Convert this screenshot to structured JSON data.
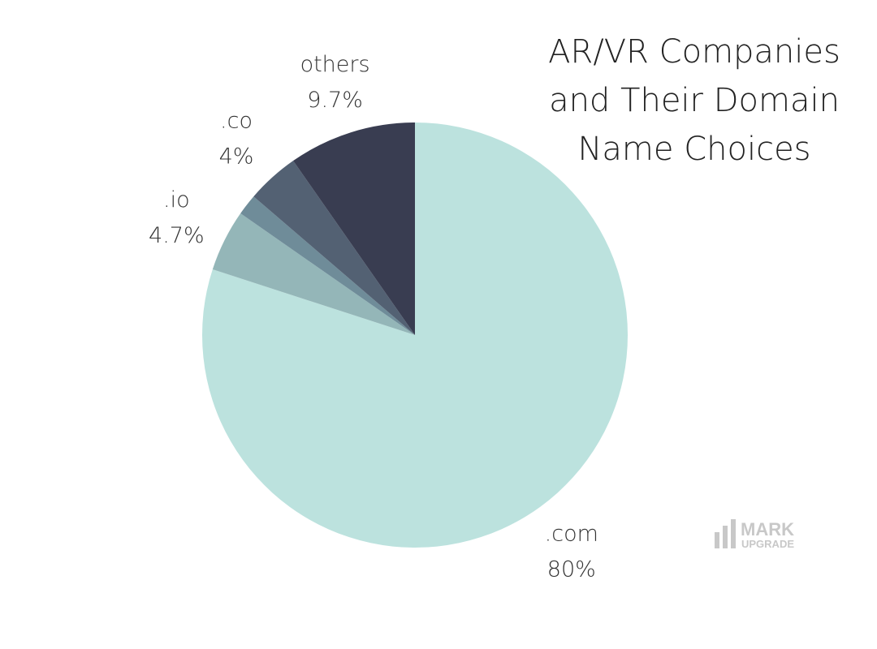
{
  "chart_data": {
    "type": "pie",
    "title": "AR/VR Companies\nand Their Domain\nName Choices",
    "categories": [
      ".com",
      ".io",
      null,
      ".co",
      "others"
    ],
    "values": [
      80,
      4.7,
      1.6,
      4,
      9.7
    ],
    "value_labels": [
      "80%",
      "4.7%",
      null,
      "4%",
      "9.7%"
    ],
    "colors": [
      "#bce2de",
      "#94b6b8",
      "#6f8c99",
      "#536173",
      "#393d51"
    ]
  },
  "logo": {
    "line1": "MARK",
    "line2": "UPGRADE"
  }
}
